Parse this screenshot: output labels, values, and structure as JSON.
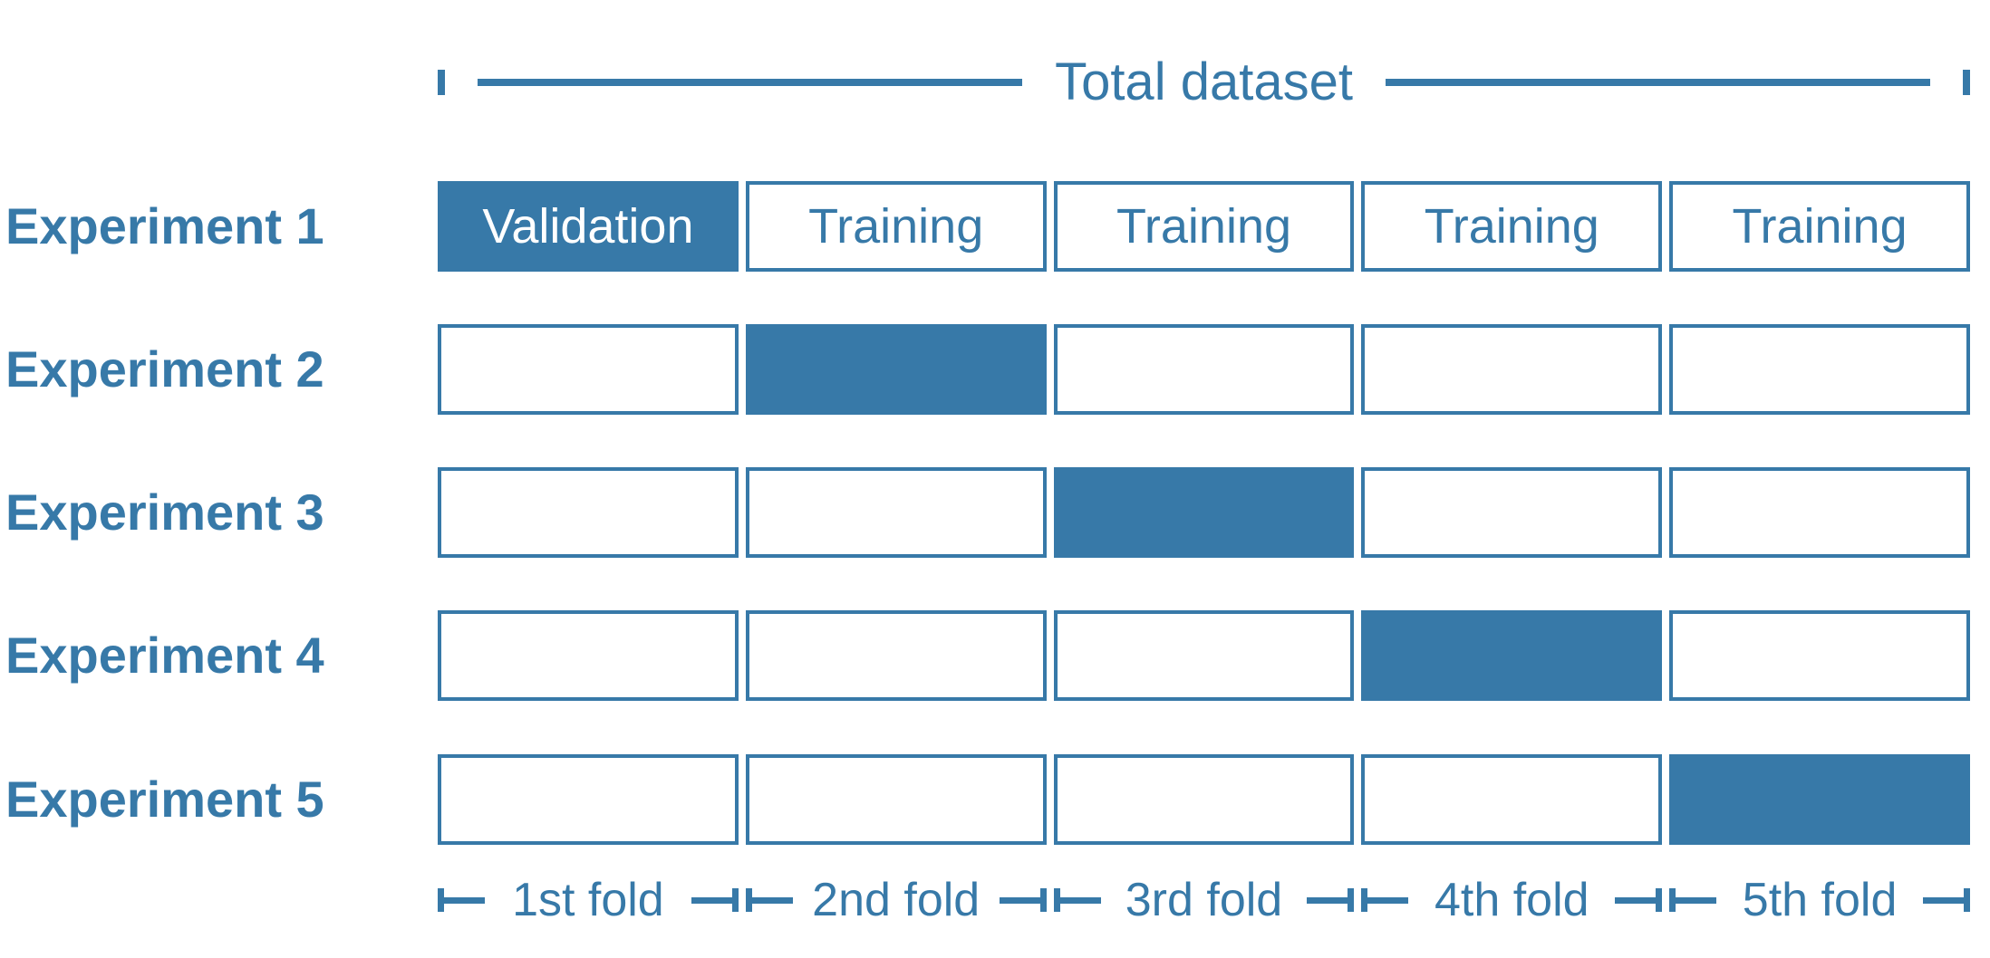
{
  "colors": {
    "accent": "#3779a8",
    "background": "#ffffff",
    "filled_text": "#ffffff"
  },
  "header": {
    "label": "Total dataset"
  },
  "grid": {
    "rows": [
      {
        "label": "Experiment 1",
        "cells": [
          {
            "text": "Validation",
            "state": "validation"
          },
          {
            "text": "Training",
            "state": "training"
          },
          {
            "text": "Training",
            "state": "training"
          },
          {
            "text": "Training",
            "state": "training"
          },
          {
            "text": "Training",
            "state": "training"
          }
        ]
      },
      {
        "label": "Experiment 2",
        "cells": [
          {
            "text": "",
            "state": "training"
          },
          {
            "text": "",
            "state": "validation"
          },
          {
            "text": "",
            "state": "training"
          },
          {
            "text": "",
            "state": "training"
          },
          {
            "text": "",
            "state": "training"
          }
        ]
      },
      {
        "label": "Experiment 3",
        "cells": [
          {
            "text": "",
            "state": "training"
          },
          {
            "text": "",
            "state": "training"
          },
          {
            "text": "",
            "state": "validation"
          },
          {
            "text": "",
            "state": "training"
          },
          {
            "text": "",
            "state": "training"
          }
        ]
      },
      {
        "label": "Experiment 4",
        "cells": [
          {
            "text": "",
            "state": "training"
          },
          {
            "text": "",
            "state": "training"
          },
          {
            "text": "",
            "state": "training"
          },
          {
            "text": "",
            "state": "validation"
          },
          {
            "text": "",
            "state": "training"
          }
        ]
      },
      {
        "label": "Experiment 5",
        "cells": [
          {
            "text": "",
            "state": "training"
          },
          {
            "text": "",
            "state": "training"
          },
          {
            "text": "",
            "state": "training"
          },
          {
            "text": "",
            "state": "training"
          },
          {
            "text": "",
            "state": "validation"
          }
        ]
      }
    ]
  },
  "folds": {
    "labels": [
      "1st fold",
      "2nd fold",
      "3rd fold",
      "4th fold",
      "5th fold"
    ]
  }
}
